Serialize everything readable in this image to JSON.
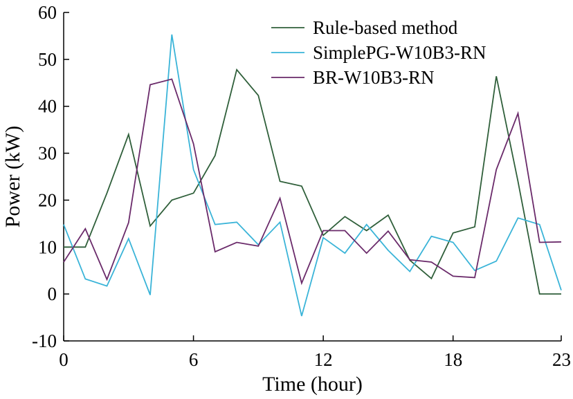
{
  "chart_data": {
    "type": "line",
    "title": "",
    "xlabel": "Time (hour)",
    "ylabel": "Power (kW)",
    "xlim": [
      0,
      23
    ],
    "ylim": [
      -10,
      60
    ],
    "xticks": [
      0,
      6,
      12,
      18,
      23
    ],
    "yticks": [
      -10,
      0,
      10,
      20,
      30,
      40,
      50,
      60
    ],
    "grid": false,
    "legend_position": "top-right",
    "x": [
      0,
      1,
      2,
      3,
      4,
      5,
      6,
      7,
      8,
      9,
      10,
      11,
      12,
      13,
      14,
      15,
      16,
      17,
      18,
      19,
      20,
      21,
      22,
      23
    ],
    "series": [
      {
        "name": "Rule-based method",
        "color": "#2f5f3a",
        "values": [
          10,
          10,
          21.5,
          34,
          14.5,
          20,
          21.5,
          29.5,
          47.8,
          42.3,
          24,
          23,
          12.5,
          16.5,
          13.5,
          16.8,
          7.2,
          3.3,
          13,
          14.3,
          46.4,
          24,
          0,
          0
        ]
      },
      {
        "name": "SimplePG-W10B3-RN",
        "color": "#3ab4d8",
        "values": [
          14.8,
          3.2,
          1.7,
          11.8,
          -0.2,
          55.3,
          26.5,
          14.8,
          15.3,
          10.5,
          15.3,
          -4.7,
          12,
          8.7,
          14.8,
          9.3,
          4.8,
          12.3,
          11,
          5,
          7,
          16.2,
          14.8,
          0.8
        ]
      },
      {
        "name": "BR-W10B3-RN",
        "color": "#6a2a6a",
        "values": [
          6.8,
          13.9,
          3.1,
          15.2,
          44.6,
          45.8,
          32,
          9,
          11,
          10.2,
          20.4,
          2.3,
          13.5,
          13.5,
          8.7,
          13.4,
          7.3,
          6.8,
          3.8,
          3.5,
          26.5,
          38.5,
          11,
          11.1
        ]
      }
    ]
  }
}
